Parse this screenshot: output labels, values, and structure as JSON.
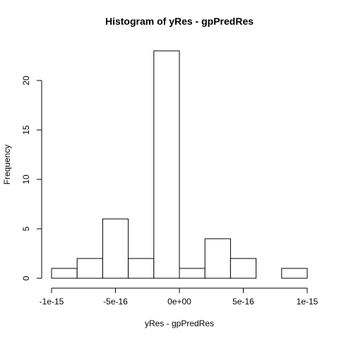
{
  "chart_data": {
    "type": "bar",
    "title": "Histogram of yRes - gpPredRes",
    "xlabel": "yRes - gpPredRes",
    "ylabel": "Frequency",
    "bin_edges": [
      -1e-15,
      -8e-16,
      -6e-16,
      -4e-16,
      -2e-16,
      0,
      2e-16,
      4e-16,
      6e-16,
      8e-16,
      1e-15
    ],
    "values": [
      1,
      2,
      6,
      2,
      23,
      1,
      4,
      2,
      0,
      1
    ],
    "xlim": [
      -1e-15,
      1e-15
    ],
    "ylim": [
      0,
      23
    ],
    "x_ticks": [
      -1e-15,
      -5e-16,
      0,
      5e-16,
      1e-15
    ],
    "x_tick_labels": [
      "-1e-15",
      "-5e-16",
      "0e+00",
      "5e-16",
      "1e-15"
    ],
    "y_ticks": [
      0,
      5,
      10,
      15,
      20
    ],
    "y_tick_labels": [
      "0",
      "5",
      "10",
      "15",
      "20"
    ],
    "grid": false,
    "bar_fill": "#ffffff",
    "bar_stroke": "#000000"
  }
}
